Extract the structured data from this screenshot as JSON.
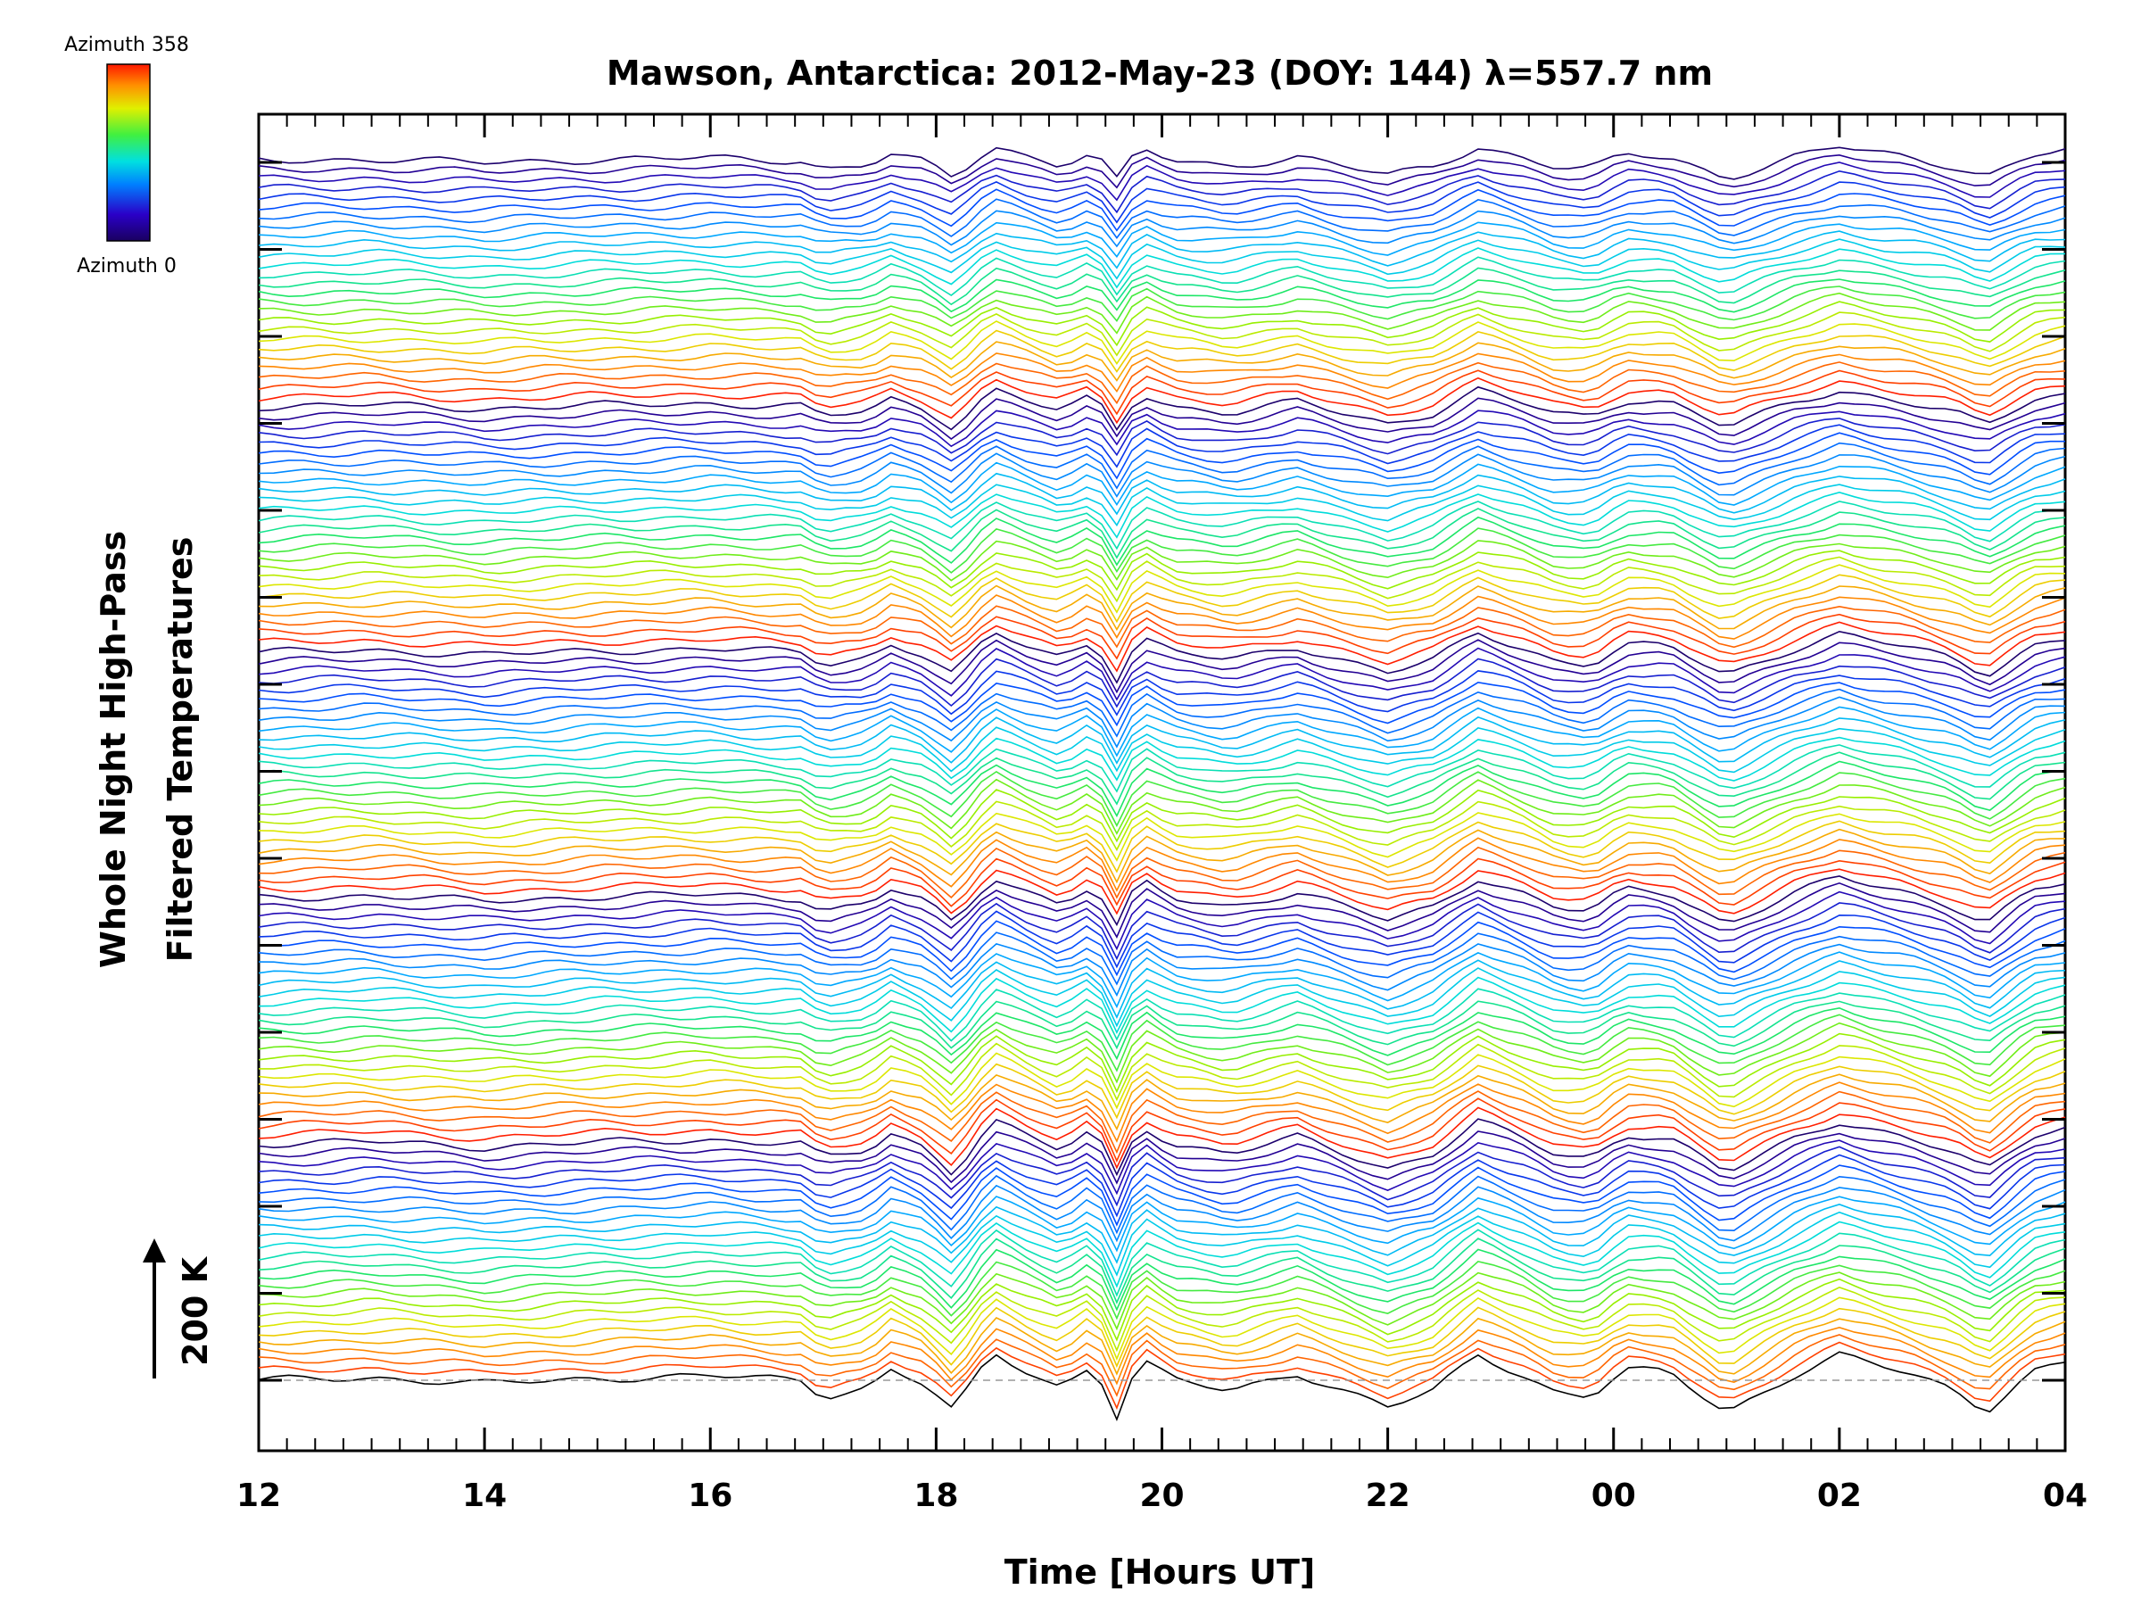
{
  "chart_data": {
    "type": "line",
    "title": "Mawson, Antarctica: 2012-May-23 (DOY: 144) λ=557.7 nm",
    "xlabel": "Time [Hours UT]",
    "ylabel_line1": "Whole Night High-Pass",
    "ylabel_line2": "Filtered Temperatures",
    "scale_bar_label": "200 K",
    "colorbar": {
      "top_label": "Azimuth 358",
      "bottom_label": "Azimuth 0",
      "min": 0,
      "max": 358
    },
    "x_ticks": [
      "12",
      "14",
      "16",
      "18",
      "20",
      "22",
      "00",
      "02",
      "04"
    ],
    "xlim": [
      12,
      28
    ],
    "offset_series_count": 130,
    "baseline_style": "dashed gray at lowest trace",
    "grid": false,
    "legend": "colorbar top-left",
    "colors": {
      "palette": [
        "#000000",
        "#1a0060",
        "#2a00b0",
        "#0040ff",
        "#00a0ff",
        "#00e0e0",
        "#00e070",
        "#60f000",
        "#d0f000",
        "#ffd000",
        "#ff8000",
        "#ff2000"
      ],
      "axis": "#000000",
      "baseline": "#999999"
    }
  }
}
